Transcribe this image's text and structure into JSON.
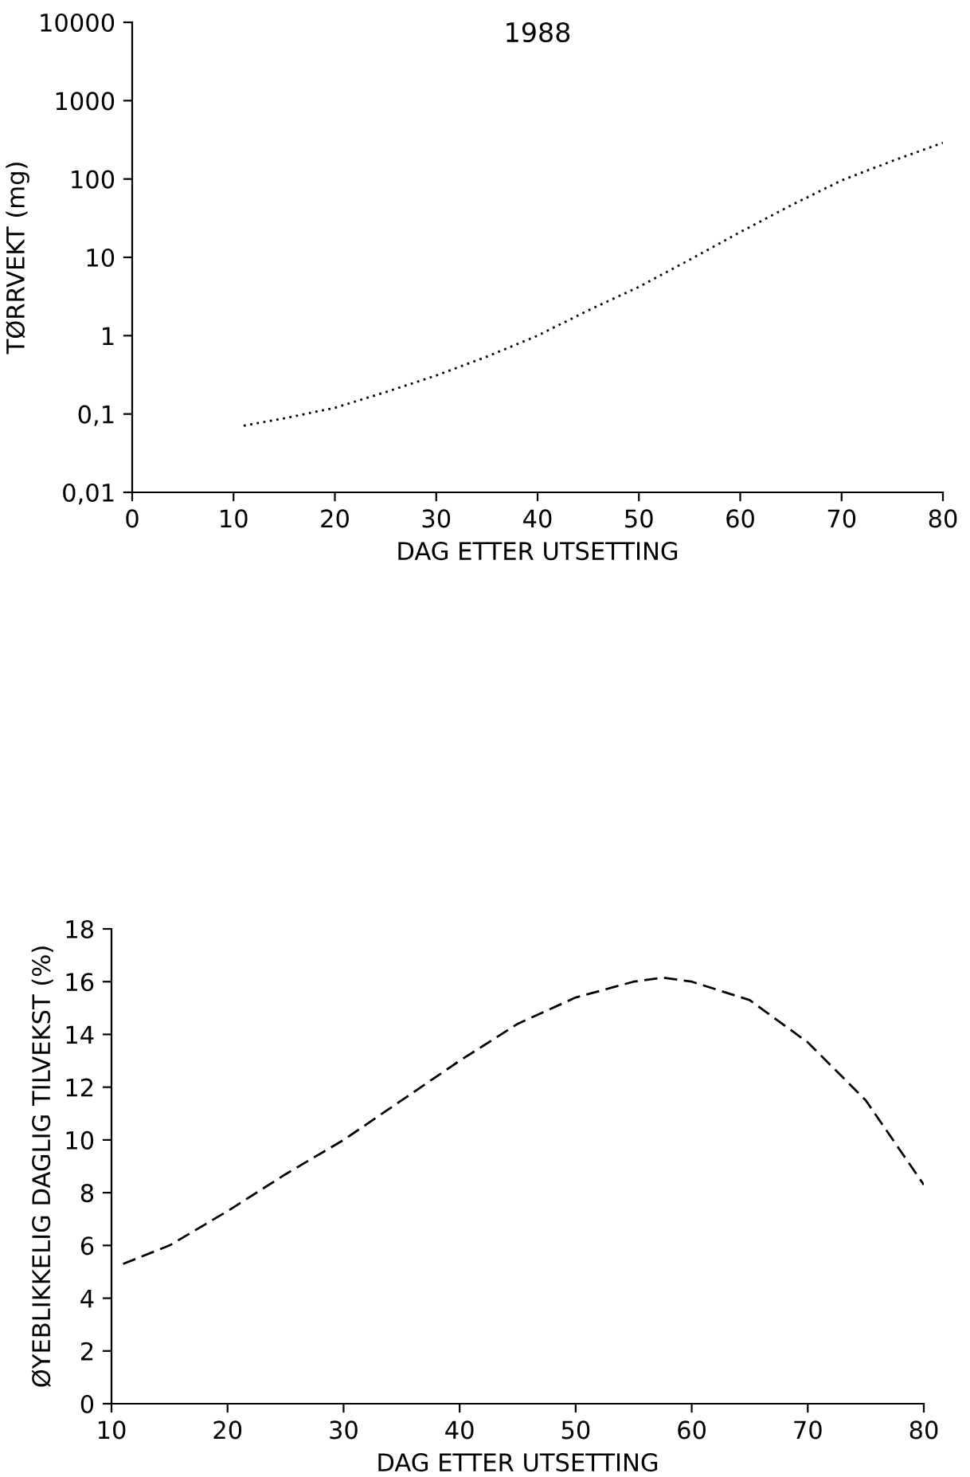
{
  "chart_data": [
    {
      "type": "line",
      "title": "1988",
      "xlabel": "DAG ETTER UTSETTING",
      "ylabel": "TØRRVEKT (mg)",
      "log": "y",
      "line_style": "dotted",
      "grid": false,
      "xlim": [
        0,
        80
      ],
      "xticks": [
        0,
        10,
        20,
        30,
        40,
        50,
        60,
        70,
        80
      ],
      "ylim": [
        0.01,
        10000
      ],
      "yticks": [
        {
          "value": 0.01,
          "label": "0,01"
        },
        {
          "value": 0.1,
          "label": "0,1"
        },
        1,
        10,
        100,
        1000,
        10000
      ],
      "series": [
        {
          "color": "#000000",
          "x": [
            11,
            15,
            20,
            25,
            30,
            35,
            40,
            45,
            50,
            55,
            60,
            65,
            70,
            75,
            80
          ],
          "values": [
            0.071,
            0.088,
            0.12,
            0.19,
            0.31,
            0.54,
            1.0,
            2.1,
            4.2,
            9.3,
            21,
            46,
            96,
            170,
            290
          ]
        }
      ]
    },
    {
      "type": "line",
      "xlabel": "DAG ETTER UTSETTING",
      "ylabel": "ØYEBLIKKELIG DAGLIG TILVEKST (%)",
      "line_style": "dashed",
      "grid": false,
      "xlim": [
        10,
        80
      ],
      "xticks": [
        10,
        20,
        30,
        40,
        50,
        60,
        70,
        80
      ],
      "ylim": [
        0,
        18
      ],
      "yticks": [
        0,
        2,
        4,
        6,
        8,
        10,
        12,
        14,
        16,
        18
      ],
      "series": [
        {
          "color": "#000000",
          "x": [
            11,
            15,
            20,
            25,
            30,
            35,
            40,
            45,
            50,
            55,
            57.5,
            60,
            65,
            70,
            75,
            80
          ],
          "values": [
            5.3,
            6.0,
            7.3,
            8.7,
            10.0,
            11.5,
            13.0,
            14.4,
            15.4,
            16.0,
            16.15,
            16.0,
            15.3,
            13.7,
            11.5,
            8.3
          ]
        }
      ]
    }
  ]
}
